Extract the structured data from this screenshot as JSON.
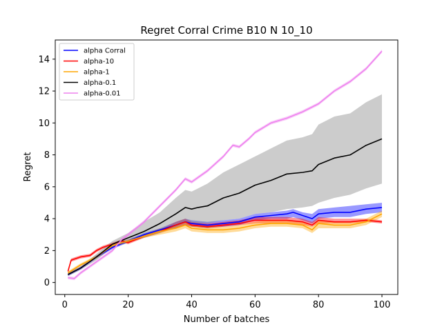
{
  "chart_data": {
    "type": "line",
    "title": "Regret Corral Crime B10 N 10_10",
    "xlabel": "Number of batches",
    "ylabel": "Regret",
    "xlim": [
      -3,
      105
    ],
    "ylim": [
      -0.75,
      15.2
    ],
    "xticks": [
      0,
      20,
      40,
      60,
      80,
      100
    ],
    "yticks": [
      0,
      2,
      4,
      6,
      8,
      10,
      12,
      14
    ],
    "grid": false,
    "legend_position": "top-left",
    "series": [
      {
        "name": "alpha Corral",
        "color": "#0000ff",
        "band_color": "#0000ff",
        "x": [
          1,
          5,
          10,
          15,
          20,
          25,
          30,
          35,
          38,
          40,
          45,
          50,
          55,
          60,
          65,
          70,
          72,
          75,
          78,
          80,
          85,
          90,
          95,
          100
        ],
        "y": [
          0.5,
          0.9,
          1.6,
          2.2,
          2.6,
          3.0,
          3.3,
          3.6,
          3.8,
          3.7,
          3.6,
          3.7,
          3.8,
          4.1,
          4.2,
          4.3,
          4.4,
          4.2,
          4.0,
          4.3,
          4.4,
          4.4,
          4.6,
          4.7
        ],
        "lower": [
          0.4,
          0.8,
          1.5,
          2.1,
          2.5,
          2.9,
          3.2,
          3.4,
          3.6,
          3.5,
          3.4,
          3.5,
          3.6,
          3.9,
          4.0,
          4.0,
          4.1,
          3.9,
          3.7,
          4.0,
          4.1,
          4.1,
          4.3,
          4.4
        ],
        "upper": [
          0.6,
          1.0,
          1.7,
          2.3,
          2.7,
          3.1,
          3.4,
          3.8,
          4.0,
          3.9,
          3.8,
          3.9,
          4.0,
          4.3,
          4.4,
          4.5,
          4.6,
          4.4,
          4.3,
          4.6,
          4.7,
          4.8,
          4.9,
          5.0
        ]
      },
      {
        "name": "alpha-10",
        "color": "#ff0000",
        "band_color": "#ff0000",
        "x": [
          1,
          2,
          5,
          8,
          10,
          12,
          15,
          18,
          20,
          25,
          30,
          35,
          38,
          40,
          45,
          50,
          55,
          60,
          65,
          70,
          75,
          78,
          80,
          85,
          90,
          95,
          100
        ],
        "y": [
          0.7,
          1.4,
          1.6,
          1.7,
          2.0,
          2.2,
          2.4,
          2.6,
          2.5,
          2.9,
          3.2,
          3.6,
          3.8,
          3.6,
          3.5,
          3.6,
          3.7,
          3.9,
          3.9,
          3.9,
          3.8,
          3.6,
          3.9,
          3.8,
          3.8,
          3.9,
          3.8
        ],
        "lower": [
          0.6,
          1.3,
          1.5,
          1.6,
          1.9,
          2.1,
          2.3,
          2.5,
          2.4,
          2.8,
          3.1,
          3.4,
          3.6,
          3.5,
          3.4,
          3.5,
          3.6,
          3.7,
          3.7,
          3.7,
          3.6,
          3.5,
          3.7,
          3.7,
          3.7,
          3.8,
          3.7
        ],
        "upper": [
          0.8,
          1.5,
          1.7,
          1.8,
          2.1,
          2.3,
          2.5,
          2.7,
          2.6,
          3.0,
          3.3,
          3.8,
          4.0,
          3.8,
          3.7,
          3.8,
          3.9,
          4.1,
          4.1,
          4.1,
          4.0,
          3.8,
          4.1,
          4.0,
          4.0,
          4.0,
          3.9
        ]
      },
      {
        "name": "alpha-1",
        "color": "#ffa500",
        "band_color": "#ffa500",
        "x": [
          1,
          5,
          10,
          15,
          20,
          25,
          30,
          35,
          38,
          40,
          45,
          50,
          55,
          60,
          65,
          70,
          75,
          78,
          80,
          85,
          90,
          95,
          100
        ],
        "y": [
          0.6,
          1.1,
          1.6,
          2.3,
          2.6,
          2.9,
          3.2,
          3.4,
          3.6,
          3.4,
          3.3,
          3.3,
          3.4,
          3.6,
          3.7,
          3.7,
          3.6,
          3.3,
          3.7,
          3.6,
          3.6,
          3.8,
          4.3
        ],
        "lower": [
          0.5,
          1.0,
          1.5,
          2.2,
          2.5,
          2.8,
          3.0,
          3.2,
          3.4,
          3.2,
          3.1,
          3.1,
          3.2,
          3.4,
          3.5,
          3.5,
          3.4,
          3.1,
          3.4,
          3.4,
          3.4,
          3.6,
          4.1
        ],
        "upper": [
          0.7,
          1.2,
          1.7,
          2.4,
          2.7,
          3.0,
          3.4,
          3.6,
          3.8,
          3.6,
          3.5,
          3.5,
          3.6,
          3.8,
          3.9,
          3.9,
          3.8,
          3.5,
          3.9,
          3.8,
          3.8,
          4.0,
          4.5
        ]
      },
      {
        "name": "alpha-0.1",
        "color": "#000000",
        "band_color": "#808080",
        "x": [
          1,
          5,
          10,
          15,
          20,
          25,
          30,
          35,
          38,
          40,
          42,
          45,
          50,
          55,
          60,
          65,
          70,
          75,
          78,
          80,
          85,
          90,
          95,
          100
        ],
        "y": [
          0.5,
          0.9,
          1.6,
          2.4,
          2.8,
          3.2,
          3.7,
          4.3,
          4.7,
          4.6,
          4.7,
          4.8,
          5.3,
          5.6,
          6.1,
          6.4,
          6.8,
          6.9,
          7.0,
          7.4,
          7.8,
          8.0,
          8.6,
          9.0
        ],
        "lower": [
          0.4,
          0.8,
          1.4,
          2.2,
          2.5,
          2.8,
          3.1,
          3.5,
          3.8,
          3.7,
          3.7,
          3.7,
          3.9,
          4.0,
          4.3,
          4.4,
          4.6,
          4.7,
          4.8,
          5.0,
          5.3,
          5.5,
          5.9,
          6.2
        ],
        "upper": [
          0.6,
          1.0,
          1.8,
          2.6,
          3.1,
          3.8,
          4.4,
          5.3,
          5.8,
          5.7,
          5.9,
          6.2,
          6.9,
          7.4,
          7.9,
          8.4,
          8.9,
          9.1,
          9.3,
          9.9,
          10.4,
          10.6,
          11.3,
          11.8
        ]
      },
      {
        "name": "alpha-0.01",
        "color": "#ee82ee",
        "band_color": "#ee82ee",
        "x": [
          1,
          3,
          5,
          10,
          15,
          18,
          20,
          25,
          30,
          35,
          38,
          40,
          45,
          50,
          53,
          55,
          58,
          60,
          65,
          70,
          75,
          80,
          85,
          90,
          95,
          100
        ],
        "y": [
          0.3,
          0.25,
          0.6,
          1.3,
          2.0,
          2.7,
          3.0,
          3.8,
          4.8,
          5.8,
          6.5,
          6.3,
          7.0,
          7.9,
          8.6,
          8.5,
          9.0,
          9.4,
          10.0,
          10.3,
          10.7,
          11.2,
          12.0,
          12.6,
          13.4,
          14.5
        ],
        "lower": [
          0.2,
          0.15,
          0.5,
          1.2,
          1.9,
          2.6,
          2.9,
          3.7,
          4.7,
          5.7,
          6.4,
          6.2,
          6.9,
          7.8,
          8.5,
          8.4,
          8.9,
          9.3,
          9.9,
          10.2,
          10.6,
          11.1,
          11.9,
          12.5,
          13.3,
          14.4
        ],
        "upper": [
          0.4,
          0.35,
          0.7,
          1.4,
          2.1,
          2.8,
          3.1,
          3.9,
          4.9,
          5.9,
          6.6,
          6.4,
          7.1,
          8.0,
          8.7,
          8.6,
          9.1,
          9.5,
          10.1,
          10.4,
          10.8,
          11.3,
          12.1,
          12.7,
          13.5,
          14.6
        ]
      }
    ]
  }
}
